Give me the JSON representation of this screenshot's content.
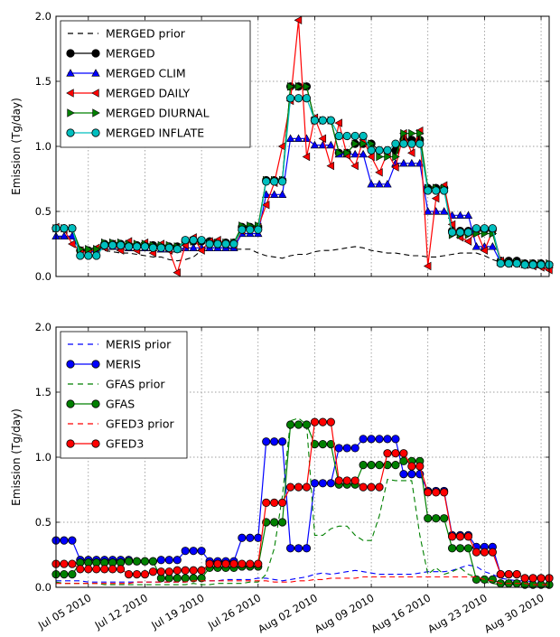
{
  "colors": {
    "black": "#000000",
    "blue": "#0000ff",
    "red": "#ff0000",
    "green": "#008000",
    "cyan": "#00bfbf",
    "grid": "#808080"
  },
  "chart_data": [
    {
      "type": "line",
      "ylabel": "Emission (Tg/day)",
      "ylim": [
        0,
        2.0
      ],
      "yticks": [
        "0.0",
        "0.5",
        "1.0",
        "1.5",
        "2.0"
      ],
      "xlim": [
        "2010-07-01",
        "2010-08-31"
      ],
      "xtick_labels": [],
      "grid": true,
      "legend_placement": "top-left",
      "x_dates": [
        "2010-07-01",
        "2010-07-02",
        "2010-07-03",
        "2010-07-04",
        "2010-07-05",
        "2010-07-06",
        "2010-07-07",
        "2010-07-08",
        "2010-07-09",
        "2010-07-10",
        "2010-07-11",
        "2010-07-12",
        "2010-07-13",
        "2010-07-14",
        "2010-07-15",
        "2010-07-16",
        "2010-07-17",
        "2010-07-18",
        "2010-07-19",
        "2010-07-20",
        "2010-07-21",
        "2010-07-22",
        "2010-07-23",
        "2010-07-24",
        "2010-07-25",
        "2010-07-26",
        "2010-07-27",
        "2010-07-28",
        "2010-07-29",
        "2010-07-30",
        "2010-07-31",
        "2010-08-01",
        "2010-08-02",
        "2010-08-03",
        "2010-08-04",
        "2010-08-05",
        "2010-08-06",
        "2010-08-07",
        "2010-08-08",
        "2010-08-09",
        "2010-08-10",
        "2010-08-11",
        "2010-08-12",
        "2010-08-13",
        "2010-08-14",
        "2010-08-15",
        "2010-08-16",
        "2010-08-17",
        "2010-08-18",
        "2010-08-19",
        "2010-08-20",
        "2010-08-21",
        "2010-08-22",
        "2010-08-23",
        "2010-08-24",
        "2010-08-25",
        "2010-08-26",
        "2010-08-27",
        "2010-08-28",
        "2010-08-29",
        "2010-08-30",
        "2010-08-31"
      ],
      "series": [
        {
          "name": "MERGED prior",
          "style": "dashed",
          "marker": "none",
          "color": "#000000",
          "values": [
            0.3,
            0.3,
            0.3,
            0.22,
            0.22,
            0.21,
            0.2,
            0.19,
            0.18,
            0.18,
            0.17,
            0.16,
            0.15,
            0.15,
            0.13,
            0.12,
            0.13,
            0.15,
            0.2,
            0.22,
            0.22,
            0.22,
            0.21,
            0.21,
            0.21,
            0.18,
            0.16,
            0.15,
            0.14,
            0.16,
            0.17,
            0.17,
            0.19,
            0.2,
            0.2,
            0.21,
            0.22,
            0.23,
            0.22,
            0.2,
            0.19,
            0.18,
            0.18,
            0.17,
            0.16,
            0.16,
            0.15,
            0.15,
            0.16,
            0.17,
            0.18,
            0.18,
            0.18,
            0.16,
            0.13,
            0.11,
            0.1,
            0.1,
            0.09,
            0.08,
            0.08,
            0.07
          ]
        },
        {
          "name": "MERGED",
          "style": "solid",
          "marker": "circle",
          "color": "#000000",
          "values": [
            0.37,
            0.37,
            0.37,
            0.2,
            0.2,
            0.2,
            0.25,
            0.25,
            0.25,
            0.24,
            0.24,
            0.24,
            0.24,
            0.23,
            0.23,
            0.23,
            0.27,
            0.27,
            0.27,
            0.27,
            0.26,
            0.26,
            0.26,
            0.38,
            0.38,
            0.38,
            0.74,
            0.74,
            0.74,
            1.46,
            1.46,
            1.46,
            1.2,
            1.2,
            1.2,
            0.95,
            0.95,
            1.02,
            1.02,
            1.02,
            0.97,
            0.97,
            0.97,
            1.05,
            1.05,
            1.05,
            0.68,
            0.68,
            0.68,
            0.35,
            0.35,
            0.35,
            0.36,
            0.36,
            0.36,
            0.12,
            0.12,
            0.12,
            0.1,
            0.1,
            0.1,
            0.09
          ]
        },
        {
          "name": "MERGED CLIM",
          "style": "solid",
          "marker": "triangle-up",
          "color": "#0000ff",
          "values": [
            0.31,
            0.31,
            0.31,
            0.19,
            0.19,
            0.19,
            0.23,
            0.23,
            0.23,
            0.22,
            0.22,
            0.22,
            0.22,
            0.21,
            0.21,
            0.21,
            0.22,
            0.22,
            0.22,
            0.22,
            0.22,
            0.22,
            0.22,
            0.33,
            0.33,
            0.33,
            0.63,
            0.63,
            0.63,
            1.06,
            1.06,
            1.06,
            1.01,
            1.01,
            1.01,
            0.94,
            0.94,
            0.94,
            0.94,
            0.71,
            0.71,
            0.71,
            0.87,
            0.87,
            0.87,
            0.87,
            0.5,
            0.5,
            0.5,
            0.47,
            0.47,
            0.47,
            0.23,
            0.23,
            0.23,
            0.11,
            0.11,
            0.11,
            0.09,
            0.09,
            0.09,
            0.09
          ]
        },
        {
          "name": "MERGED DAILY",
          "style": "solid",
          "marker": "triangle-left",
          "color": "#ff0000",
          "values": [
            0.38,
            0.36,
            0.25,
            0.2,
            0.18,
            0.22,
            0.22,
            0.25,
            0.2,
            0.27,
            0.2,
            0.26,
            0.18,
            0.25,
            0.2,
            0.03,
            0.24,
            0.3,
            0.2,
            0.27,
            0.28,
            0.25,
            0.24,
            0.35,
            0.37,
            0.38,
            0.55,
            0.72,
            1.0,
            1.35,
            1.97,
            0.92,
            1.22,
            1.06,
            0.85,
            1.18,
            0.93,
            0.85,
            1.05,
            0.92,
            0.8,
            0.95,
            0.84,
            1.1,
            0.95,
            1.12,
            0.08,
            0.6,
            0.7,
            0.4,
            0.3,
            0.27,
            0.35,
            0.2,
            0.35,
            0.12,
            0.1,
            0.1,
            0.09,
            0.08,
            0.07,
            0.05
          ]
        },
        {
          "name": "MERGED DIURNAL",
          "style": "solid",
          "marker": "triangle-right",
          "color": "#008000",
          "values": [
            0.37,
            0.37,
            0.37,
            0.21,
            0.21,
            0.21,
            0.26,
            0.26,
            0.26,
            0.25,
            0.25,
            0.25,
            0.24,
            0.24,
            0.24,
            0.23,
            0.27,
            0.27,
            0.27,
            0.26,
            0.26,
            0.26,
            0.26,
            0.39,
            0.39,
            0.39,
            0.74,
            0.74,
            0.74,
            1.46,
            1.46,
            1.46,
            1.2,
            1.2,
            1.2,
            0.95,
            0.95,
            1.02,
            1.02,
            1.02,
            0.92,
            0.92,
            0.92,
            1.1,
            1.1,
            1.1,
            0.68,
            0.68,
            0.68,
            0.32,
            0.32,
            0.32,
            0.33,
            0.33,
            0.33,
            0.11,
            0.11,
            0.11,
            0.1,
            0.1,
            0.1,
            0.1
          ]
        },
        {
          "name": "MERGED INFLATE",
          "style": "solid",
          "marker": "circle",
          "color": "#00bfbf",
          "values": [
            0.37,
            0.37,
            0.37,
            0.16,
            0.16,
            0.16,
            0.24,
            0.24,
            0.24,
            0.23,
            0.23,
            0.23,
            0.22,
            0.22,
            0.22,
            0.21,
            0.28,
            0.28,
            0.28,
            0.25,
            0.25,
            0.25,
            0.25,
            0.36,
            0.36,
            0.36,
            0.73,
            0.73,
            0.73,
            1.37,
            1.37,
            1.37,
            1.2,
            1.2,
            1.2,
            1.08,
            1.08,
            1.08,
            1.08,
            0.97,
            0.97,
            0.97,
            1.02,
            1.02,
            1.02,
            1.02,
            0.66,
            0.66,
            0.66,
            0.34,
            0.34,
            0.34,
            0.37,
            0.37,
            0.37,
            0.1,
            0.1,
            0.1,
            0.09,
            0.09,
            0.09,
            0.09
          ]
        }
      ]
    },
    {
      "type": "line",
      "ylabel": "Emission (Tg/day)",
      "ylim": [
        0,
        2.0
      ],
      "yticks": [
        "0.0",
        "0.5",
        "1.0",
        "1.5",
        "2.0"
      ],
      "xlim": [
        "2010-07-01",
        "2010-08-31"
      ],
      "xtick_labels": [
        "Jul 05 2010",
        "Jul 12 2010",
        "Jul 19 2010",
        "Jul 26 2010",
        "Aug 02 2010",
        "Aug 09 2010",
        "Aug 16 2010",
        "Aug 23 2010",
        "Aug 30 2010"
      ],
      "xtick_dates": [
        "2010-07-05",
        "2010-07-12",
        "2010-07-19",
        "2010-07-26",
        "2010-08-02",
        "2010-08-09",
        "2010-08-16",
        "2010-08-23",
        "2010-08-30"
      ],
      "grid": true,
      "legend_placement": "top-left",
      "x_dates": [
        "2010-07-01",
        "2010-07-02",
        "2010-07-03",
        "2010-07-04",
        "2010-07-05",
        "2010-07-06",
        "2010-07-07",
        "2010-07-08",
        "2010-07-09",
        "2010-07-10",
        "2010-07-11",
        "2010-07-12",
        "2010-07-13",
        "2010-07-14",
        "2010-07-15",
        "2010-07-16",
        "2010-07-17",
        "2010-07-18",
        "2010-07-19",
        "2010-07-20",
        "2010-07-21",
        "2010-07-22",
        "2010-07-23",
        "2010-07-24",
        "2010-07-25",
        "2010-07-26",
        "2010-07-27",
        "2010-07-28",
        "2010-07-29",
        "2010-07-30",
        "2010-07-31",
        "2010-08-01",
        "2010-08-02",
        "2010-08-03",
        "2010-08-04",
        "2010-08-05",
        "2010-08-06",
        "2010-08-07",
        "2010-08-08",
        "2010-08-09",
        "2010-08-10",
        "2010-08-11",
        "2010-08-12",
        "2010-08-13",
        "2010-08-14",
        "2010-08-15",
        "2010-08-16",
        "2010-08-17",
        "2010-08-18",
        "2010-08-19",
        "2010-08-20",
        "2010-08-21",
        "2010-08-22",
        "2010-08-23",
        "2010-08-24",
        "2010-08-25",
        "2010-08-26",
        "2010-08-27",
        "2010-08-28",
        "2010-08-29",
        "2010-08-30",
        "2010-08-31"
      ],
      "series": [
        {
          "name": "MERIS prior",
          "style": "dashed",
          "marker": "none",
          "color": "#0000ff",
          "values": [
            0.05,
            0.05,
            0.05,
            0.05,
            0.04,
            0.04,
            0.04,
            0.04,
            0.04,
            0.04,
            0.04,
            0.04,
            0.04,
            0.04,
            0.04,
            0.04,
            0.04,
            0.05,
            0.05,
            0.05,
            0.05,
            0.06,
            0.06,
            0.06,
            0.06,
            0.07,
            0.07,
            0.06,
            0.05,
            0.06,
            0.07,
            0.08,
            0.1,
            0.11,
            0.1,
            0.11,
            0.12,
            0.13,
            0.12,
            0.11,
            0.1,
            0.1,
            0.1,
            0.1,
            0.1,
            0.11,
            0.12,
            0.12,
            0.12,
            0.13,
            0.15,
            0.17,
            0.16,
            0.12,
            0.1,
            0.07,
            0.06,
            0.05,
            0.05,
            0.04,
            0.04,
            0.04
          ]
        },
        {
          "name": "MERIS",
          "style": "solid",
          "marker": "circle",
          "color": "#0000ff",
          "values": [
            0.36,
            0.36,
            0.36,
            0.21,
            0.21,
            0.21,
            0.21,
            0.21,
            0.21,
            0.21,
            0.2,
            0.2,
            0.2,
            0.21,
            0.21,
            0.21,
            0.28,
            0.28,
            0.28,
            0.2,
            0.2,
            0.2,
            0.2,
            0.38,
            0.38,
            0.38,
            1.12,
            1.12,
            1.12,
            0.3,
            0.3,
            0.3,
            0.8,
            0.8,
            0.8,
            1.07,
            1.07,
            1.07,
            1.14,
            1.14,
            1.14,
            1.14,
            1.14,
            0.87,
            0.87,
            0.87,
            0.74,
            0.74,
            0.74,
            0.4,
            0.4,
            0.4,
            0.31,
            0.31,
            0.31,
            0.1,
            0.1,
            0.1,
            0.07,
            0.07,
            0.07,
            0.07
          ]
        },
        {
          "name": "GFAS prior",
          "style": "dashed",
          "marker": "none",
          "color": "#008000",
          "values": [
            0.04,
            0.03,
            0.03,
            0.03,
            0.03,
            0.03,
            0.02,
            0.02,
            0.02,
            0.02,
            0.02,
            0.02,
            0.02,
            0.02,
            0.02,
            0.02,
            0.02,
            0.03,
            0.02,
            0.02,
            0.03,
            0.03,
            0.03,
            0.03,
            0.04,
            0.04,
            0.1,
            0.3,
            0.7,
            1.28,
            1.3,
            1.25,
            0.4,
            0.4,
            0.45,
            0.47,
            0.47,
            0.4,
            0.36,
            0.36,
            0.55,
            0.83,
            0.82,
            0.82,
            0.82,
            0.4,
            0.1,
            0.15,
            0.1,
            0.12,
            0.15,
            0.1,
            0.08,
            0.04,
            0.03,
            0.02,
            0.02,
            0.02,
            0.02,
            0.02,
            0.02,
            0.02
          ]
        },
        {
          "name": "GFAS",
          "style": "solid",
          "marker": "circle",
          "color": "#008000",
          "values": [
            0.1,
            0.1,
            0.1,
            0.19,
            0.19,
            0.19,
            0.19,
            0.19,
            0.19,
            0.2,
            0.2,
            0.2,
            0.2,
            0.07,
            0.07,
            0.07,
            0.07,
            0.07,
            0.07,
            0.15,
            0.15,
            0.15,
            0.15,
            0.16,
            0.16,
            0.16,
            0.5,
            0.5,
            0.5,
            1.25,
            1.25,
            1.25,
            1.1,
            1.1,
            1.1,
            0.79,
            0.79,
            0.79,
            0.94,
            0.94,
            0.94,
            0.94,
            0.94,
            0.97,
            0.97,
            0.97,
            0.53,
            0.53,
            0.53,
            0.3,
            0.3,
            0.3,
            0.06,
            0.06,
            0.06,
            0.03,
            0.03,
            0.03,
            0.02,
            0.02,
            0.02,
            0.02
          ]
        },
        {
          "name": "GFED3 prior",
          "style": "dashed",
          "marker": "none",
          "color": "#ff0000",
          "values": [
            0.03,
            0.03,
            0.03,
            0.03,
            0.03,
            0.03,
            0.03,
            0.03,
            0.03,
            0.03,
            0.04,
            0.04,
            0.04,
            0.04,
            0.04,
            0.04,
            0.04,
            0.05,
            0.05,
            0.05,
            0.05,
            0.05,
            0.05,
            0.05,
            0.05,
            0.05,
            0.05,
            0.04,
            0.04,
            0.04,
            0.05,
            0.05,
            0.06,
            0.06,
            0.07,
            0.07,
            0.07,
            0.07,
            0.08,
            0.08,
            0.08,
            0.08,
            0.08,
            0.08,
            0.08,
            0.08,
            0.08,
            0.08,
            0.08,
            0.08,
            0.08,
            0.08,
            0.08,
            0.06,
            0.05,
            0.03,
            0.03,
            0.03,
            0.03,
            0.02,
            0.02,
            0.02
          ]
        },
        {
          "name": "GFED3",
          "style": "solid",
          "marker": "circle",
          "color": "#ff0000",
          "values": [
            0.18,
            0.18,
            0.18,
            0.14,
            0.14,
            0.14,
            0.14,
            0.14,
            0.14,
            0.1,
            0.1,
            0.1,
            0.12,
            0.12,
            0.12,
            0.13,
            0.13,
            0.13,
            0.13,
            0.18,
            0.18,
            0.18,
            0.18,
            0.18,
            0.18,
            0.18,
            0.65,
            0.65,
            0.65,
            0.77,
            0.77,
            0.77,
            1.27,
            1.27,
            1.27,
            0.82,
            0.82,
            0.82,
            0.77,
            0.77,
            0.77,
            1.03,
            1.03,
            1.03,
            0.93,
            0.93,
            0.73,
            0.73,
            0.73,
            0.39,
            0.39,
            0.39,
            0.27,
            0.27,
            0.27,
            0.1,
            0.1,
            0.1,
            0.07,
            0.07,
            0.07,
            0.07
          ]
        }
      ]
    }
  ]
}
